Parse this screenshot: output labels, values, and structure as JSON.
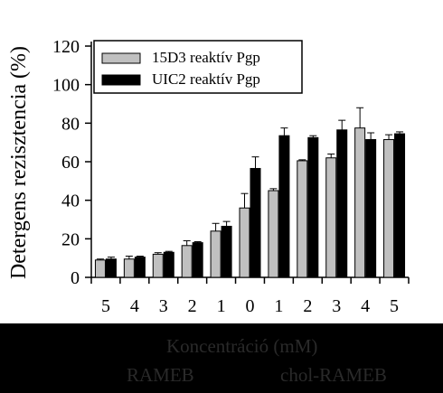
{
  "chart_data": {
    "type": "bar",
    "ylabel": "Detergens rezisztencia (%)",
    "ylim": [
      0,
      120
    ],
    "yticks": [
      0,
      20,
      40,
      60,
      80,
      100,
      120
    ],
    "categories": [
      "5",
      "4",
      "3",
      "2",
      "1",
      "0",
      "1",
      "2",
      "3",
      "4",
      "5"
    ],
    "series": [
      {
        "name": "15D3 reaktív Pgp",
        "color": "#c0c0c0",
        "values": [
          9,
          9.5,
          12,
          16.5,
          24,
          36,
          45,
          60.5,
          62,
          77.5,
          71.5
        ],
        "errors": [
          0.5,
          1.5,
          0.8,
          2.5,
          4,
          7.5,
          1,
          0.5,
          2,
          10.5,
          2.5
        ]
      },
      {
        "name": "UIC2 reaktív Pgp",
        "color": "#000000",
        "values": [
          9.5,
          10.5,
          13,
          18,
          26.5,
          56.5,
          73.5,
          72.5,
          76.5,
          71.5,
          74.5
        ],
        "errors": [
          1,
          0.5,
          0.5,
          0.5,
          2.5,
          6,
          4,
          1,
          5,
          3.5,
          1
        ]
      }
    ],
    "legend_position": "top-left",
    "grid": false
  },
  "footer": {
    "xlabel": "Koncentráció (mM)",
    "group_left": "RAMEB",
    "group_right": "chol-RAMEB"
  }
}
